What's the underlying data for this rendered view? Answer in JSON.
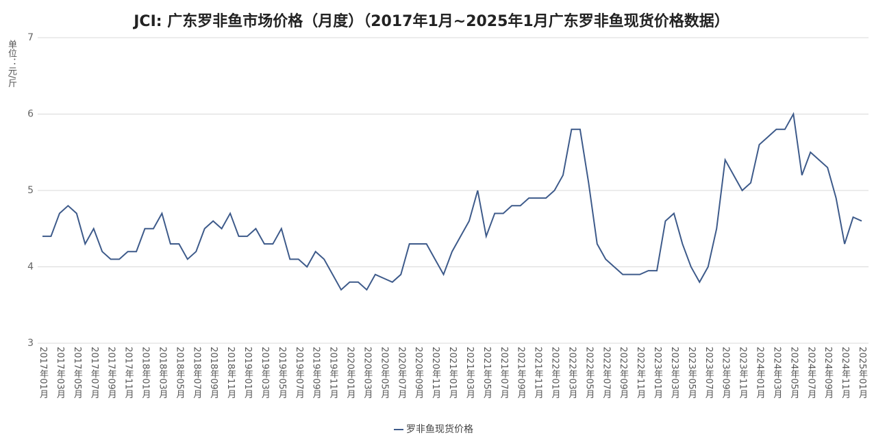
{
  "chart_data": {
    "type": "line",
    "title": "JCI: 广东罗非鱼市场价格（月度）（2017年1月~2025年1月广东罗非鱼现货价格数据）",
    "y_label": "单位：元/斤",
    "categories": [
      "2017年01月",
      null,
      "2017年03月",
      null,
      "2017年05月",
      null,
      "2017年07月",
      null,
      "2017年09月",
      null,
      "2017年11月",
      null,
      "2018年01月",
      null,
      "2018年03月",
      null,
      "2018年05月",
      null,
      "2018年07月",
      null,
      "2018年09月",
      null,
      "2018年11月",
      null,
      "2019年01月",
      null,
      "2019年03月",
      null,
      "2019年05月",
      null,
      "2019年07月",
      null,
      "2019年09月",
      null,
      "2019年11月",
      null,
      "2020年01月",
      null,
      "2020年03月",
      null,
      "2020年05月",
      null,
      "2020年07月",
      null,
      "2020年09月",
      null,
      "2020年11月",
      null,
      "2021年01月",
      null,
      "2021年03月",
      null,
      "2021年05月",
      null,
      "2021年07月",
      null,
      "2021年09月",
      null,
      "2021年11月",
      null,
      "2022年01月",
      null,
      "2022年03月",
      null,
      "2022年05月",
      null,
      "2022年07月",
      null,
      "2022年09月",
      null,
      "2022年11月",
      null,
      "2023年01月",
      null,
      "2023年03月",
      null,
      "2023年05月",
      null,
      "2023年07月",
      null,
      "2023年09月",
      null,
      "2023年11月",
      null,
      "2024年01月",
      null,
      "2024年03月",
      null,
      "2024年05月",
      null,
      "2024年07月",
      null,
      "2024年09月",
      null,
      "2024年11月",
      null,
      "2025年01月"
    ],
    "series": [
      {
        "name": "罗非鱼现货价格",
        "color": "#3d5a8a",
        "values": [
          4.4,
          4.4,
          4.7,
          4.8,
          4.7,
          4.3,
          4.5,
          4.2,
          4.1,
          4.1,
          4.2,
          4.2,
          4.5,
          4.5,
          4.7,
          4.3,
          4.3,
          4.1,
          4.2,
          4.5,
          4.6,
          4.5,
          4.7,
          4.4,
          4.4,
          4.5,
          4.3,
          4.3,
          4.5,
          4.1,
          4.1,
          4.0,
          4.2,
          4.1,
          3.9,
          3.7,
          3.8,
          3.8,
          3.7,
          3.9,
          3.85,
          3.8,
          3.9,
          4.3,
          4.3,
          4.3,
          4.1,
          3.9,
          4.2,
          4.4,
          4.6,
          5.0,
          4.4,
          4.7,
          4.7,
          4.8,
          4.8,
          4.9,
          4.9,
          4.9,
          5.0,
          5.2,
          5.8,
          5.8,
          5.1,
          4.3,
          4.1,
          4.0,
          3.9,
          3.9,
          3.9,
          3.95,
          3.95,
          4.6,
          4.7,
          4.3,
          4.0,
          3.8,
          4.0,
          4.5,
          5.4,
          5.2,
          5.0,
          5.1,
          5.6,
          5.7,
          5.8,
          5.8,
          6.0,
          5.2,
          5.5,
          5.4,
          5.3,
          4.9,
          4.3,
          4.65,
          4.6
        ]
      }
    ],
    "ylim": [
      3,
      7
    ],
    "yticks": [
      3,
      4,
      5,
      6,
      7
    ],
    "grid": true
  }
}
